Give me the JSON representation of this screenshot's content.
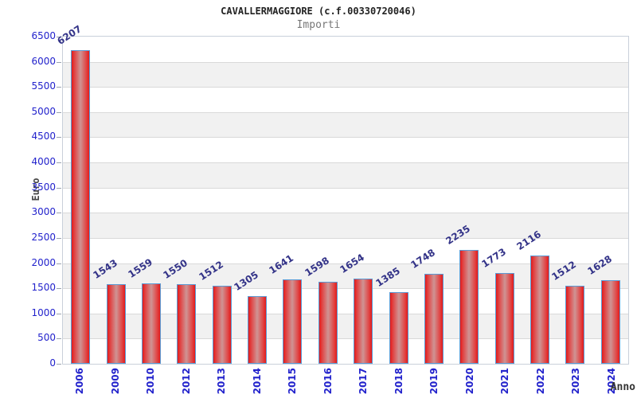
{
  "chart_data": {
    "type": "bar",
    "title": "CAVALLERMAGGIORE (c.f.00330720046)",
    "subtitle": "Importi",
    "xlabel": "Anno",
    "ylabel": "Euro",
    "categories": [
      "2006",
      "2009",
      "2010",
      "2012",
      "2013",
      "2014",
      "2015",
      "2016",
      "2017",
      "2018",
      "2019",
      "2020",
      "2021",
      "2022",
      "2023",
      "2024"
    ],
    "values": [
      6207,
      1543,
      1559,
      1550,
      1512,
      1305,
      1641,
      1598,
      1654,
      1385,
      1748,
      2235,
      1773,
      2116,
      1512,
      1628
    ],
    "ylim": [
      0,
      6500
    ],
    "yticks": [
      0,
      500,
      1000,
      1500,
      2000,
      2500,
      3000,
      3500,
      4000,
      4500,
      5000,
      5500,
      6000,
      6500
    ],
    "grid": true,
    "legend_position": "none",
    "colors": {
      "bar_fill_edge": "#e31b1b",
      "bar_fill_mid": "#e04848",
      "bar_fill_center": "#cf9494",
      "bar_border": "#5b9bd5",
      "tick_label": "#2222cc",
      "value_label": "#333388",
      "axis_title": "#464646",
      "subtitle_text": "#777777",
      "band_gray": "#f1f1f1",
      "gridline": "#d9d9d9",
      "plot_border": "#c9d0da"
    }
  }
}
